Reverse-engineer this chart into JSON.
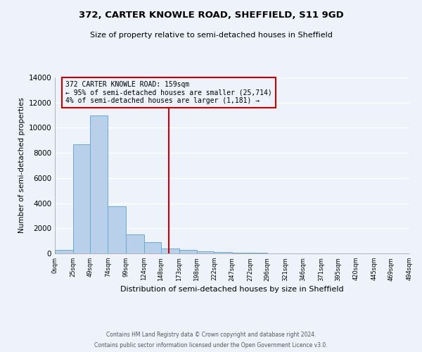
{
  "title": "372, CARTER KNOWLE ROAD, SHEFFIELD, S11 9GD",
  "subtitle": "Size of property relative to semi-detached houses in Sheffield",
  "xlabel": "Distribution of semi-detached houses by size in Sheffield",
  "ylabel": "Number of semi-detached properties",
  "bin_edges": [
    0,
    25,
    49,
    74,
    99,
    124,
    148,
    173,
    198,
    222,
    247,
    272,
    296,
    321,
    346,
    371,
    395,
    420,
    445,
    469,
    494
  ],
  "bin_counts": [
    300,
    8700,
    11000,
    3750,
    1500,
    900,
    400,
    300,
    150,
    100,
    50,
    50,
    10,
    5,
    5,
    5,
    5,
    5,
    5,
    5
  ],
  "bar_facecolor": "#b8d0ea",
  "bar_edgecolor": "#6aaad4",
  "property_size": 159,
  "vline_color": "#cc0000",
  "annotation_box_edgecolor": "#cc0000",
  "annotation_line1": "372 CARTER KNOWLE ROAD: 159sqm",
  "annotation_line2": "← 95% of semi-detached houses are smaller (25,714)",
  "annotation_line3": "4% of semi-detached houses are larger (1,181) →",
  "ylim": [
    0,
    14000
  ],
  "yticks": [
    0,
    2000,
    4000,
    6000,
    8000,
    10000,
    12000,
    14000
  ],
  "background_color": "#edf2fb",
  "grid_color": "white",
  "footer_line1": "Contains HM Land Registry data © Crown copyright and database right 2024.",
  "footer_line2": "Contains public sector information licensed under the Open Government Licence v3.0."
}
